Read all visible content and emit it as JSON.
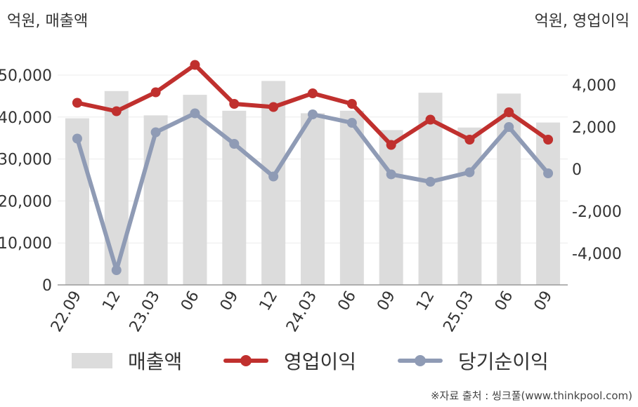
{
  "units": {
    "left": "억원, 매출액",
    "right": "억원, 영업이익"
  },
  "legend": {
    "sales": "매출액",
    "operating": "영업이익",
    "net": "당기순이익"
  },
  "source": "※자료 출처 : 씽크풀(www.thinkpool.com)",
  "colors": {
    "sales": "#dcdcdc",
    "operating": "#c0302e",
    "net": "#8f9bb5"
  },
  "chart_data": {
    "type": "bar",
    "categories": [
      "22.09",
      "12",
      "23.03",
      "06",
      "09",
      "12",
      "24.03",
      "06",
      "09",
      "12",
      "25.03",
      "06",
      "09"
    ],
    "y_left": {
      "ticks": [
        "50,000",
        "40,000",
        "30,000",
        "20,000",
        "10,000",
        "0"
      ],
      "range": [
        0,
        50000
      ]
    },
    "y_right": {
      "ticks": [
        "4,000",
        "2,000",
        "0",
        "-2,000",
        "-4,000"
      ],
      "range": [
        -5500,
        5600
      ]
    },
    "grid": true,
    "legend_position": "bottom",
    "series": [
      {
        "name": "매출액",
        "axis": "left",
        "type": "bar",
        "values": [
          39700,
          46200,
          40400,
          45300,
          41500,
          48600,
          40900,
          41500,
          36900,
          45800,
          37500,
          45600,
          38700
        ]
      },
      {
        "name": "영업이익",
        "axis": "right",
        "type": "line",
        "values": [
          3150,
          2750,
          3650,
          4950,
          3100,
          2950,
          3600,
          3100,
          1150,
          2350,
          1400,
          2700,
          1400
        ]
      },
      {
        "name": "당기순이익",
        "axis": "right",
        "type": "line",
        "values": [
          1450,
          -4800,
          1750,
          2650,
          1200,
          -350,
          2600,
          2200,
          -250,
          -600,
          -150,
          2000,
          -200
        ]
      }
    ]
  }
}
